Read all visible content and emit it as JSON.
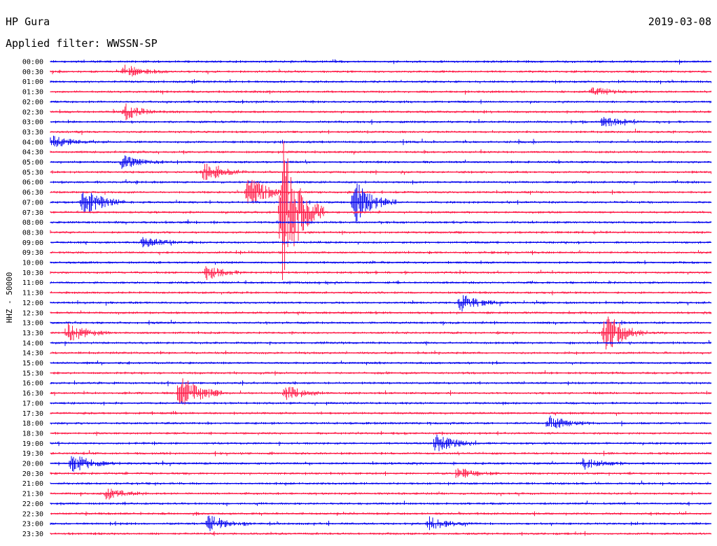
{
  "header": {
    "station": "HP Gura",
    "date": "2019-03-08",
    "filter_label": "Applied filter: WWSSN-SP"
  },
  "chart_data": {
    "type": "line",
    "title": "HP Gura",
    "subtitle": "Applied filter: WWSSN-SP",
    "date": "2019-03-08",
    "ylabel": "HHZ - 50000",
    "row_labels": [
      "00:00",
      "00:30",
      "01:00",
      "01:30",
      "02:00",
      "02:30",
      "03:00",
      "03:30",
      "04:00",
      "04:30",
      "05:00",
      "05:30",
      "06:00",
      "06:30",
      "07:00",
      "07:30",
      "08:00",
      "08:30",
      "09:00",
      "09:30",
      "10:00",
      "10:30",
      "11:00",
      "11:30",
      "12:00",
      "12:30",
      "13:00",
      "13:30",
      "14:00",
      "14:30",
      "15:00",
      "15:30",
      "16:00",
      "16:30",
      "17:00",
      "17:30",
      "18:00",
      "18:30",
      "19:00",
      "19:30",
      "20:00",
      "20:30",
      "21:00",
      "21:30",
      "22:00",
      "22:30",
      "23:00",
      "23:30"
    ],
    "trace_colors": [
      "#0000ee",
      "#ff1744"
    ],
    "row_minutes": 30,
    "grid": false,
    "events": [
      {
        "row": 13,
        "minute": 9,
        "amplitude": 4
      },
      {
        "row": 14,
        "minute": 1.5,
        "amplitude": 3.5
      },
      {
        "row": 15,
        "minute": 10.5,
        "amplitude": 18
      },
      {
        "row": 14,
        "minute": 13.8,
        "amplitude": 5
      },
      {
        "row": 11,
        "minute": 7,
        "amplitude": 2.2
      },
      {
        "row": 10,
        "minute": 3.3,
        "amplitude": 1.5
      },
      {
        "row": 27,
        "minute": 25.2,
        "amplitude": 5
      },
      {
        "row": 33,
        "minute": 5.9,
        "amplitude": 4.5
      },
      {
        "row": 38,
        "minute": 17.5,
        "amplitude": 2.2
      },
      {
        "row": 40,
        "minute": 1,
        "amplitude": 2.3
      },
      {
        "row": 36,
        "minute": 22.6,
        "amplitude": 1.7
      },
      {
        "row": 27,
        "minute": 0.8,
        "amplitude": 2.3
      },
      {
        "row": 46,
        "minute": 7.2,
        "amplitude": 2
      },
      {
        "row": 46,
        "minute": 17.2,
        "amplitude": 1.4
      },
      {
        "row": 40,
        "minute": 24.2,
        "amplitude": 1.3
      },
      {
        "row": 24,
        "minute": 18.6,
        "amplitude": 2
      },
      {
        "row": 41,
        "minute": 18.5,
        "amplitude": 1.3
      },
      {
        "row": 3,
        "minute": 24.6,
        "amplitude": 1.2
      },
      {
        "row": 1,
        "minute": 3.4,
        "amplitude": 1.6
      },
      {
        "row": 5,
        "minute": 3.4,
        "amplitude": 1.7
      },
      {
        "row": 8,
        "minute": 0.1,
        "amplitude": 1.4
      },
      {
        "row": 6,
        "minute": 25.1,
        "amplitude": 1.2
      },
      {
        "row": 21,
        "minute": 7.1,
        "amplitude": 1.6
      },
      {
        "row": 18,
        "minute": 4.2,
        "amplitude": 1.3
      },
      {
        "row": 33,
        "minute": 10.7,
        "amplitude": 1.7
      },
      {
        "row": 43,
        "minute": 2.6,
        "amplitude": 1.2
      }
    ]
  }
}
